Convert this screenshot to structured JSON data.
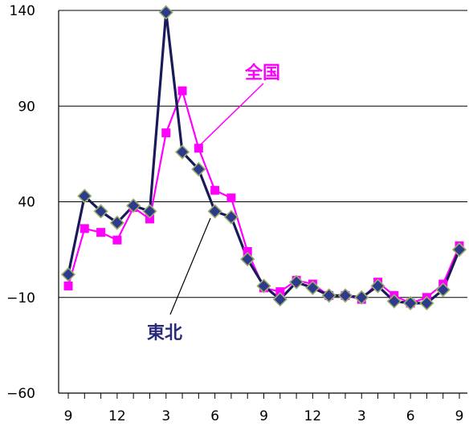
{
  "chart_data": {
    "type": "line",
    "ylim": [
      -60,
      140
    ],
    "y_ticks": [
      "140",
      "90",
      "40",
      "−10",
      "−60"
    ],
    "y_tick_values": [
      140,
      90,
      40,
      -10,
      -60
    ],
    "x_ticks": [
      "9",
      "12",
      "3",
      "6",
      "9",
      "12",
      "3",
      "6",
      "9"
    ],
    "x_tick_indices": [
      0,
      3,
      6,
      9,
      12,
      15,
      18,
      21,
      24
    ],
    "grid": true,
    "series": [
      {
        "name": "全国",
        "color": "#ff00ff",
        "marker": "square",
        "values": [
          -4,
          26,
          24,
          20,
          37,
          31,
          76,
          98,
          68,
          46,
          42,
          14,
          -5,
          -7,
          -1,
          -3,
          -9,
          -9,
          -11,
          -2,
          -9,
          -13,
          -10,
          -3,
          17
        ]
      },
      {
        "name": "東北",
        "color": "#1a1a5a",
        "marker": "diamond",
        "values": [
          2,
          43,
          35,
          29,
          38,
          35,
          139,
          66,
          57,
          35,
          32,
          10,
          -4,
          -11,
          -2,
          -5,
          -9,
          -9,
          -10,
          -4,
          -12,
          -13,
          -13,
          -6,
          15
        ]
      }
    ]
  }
}
